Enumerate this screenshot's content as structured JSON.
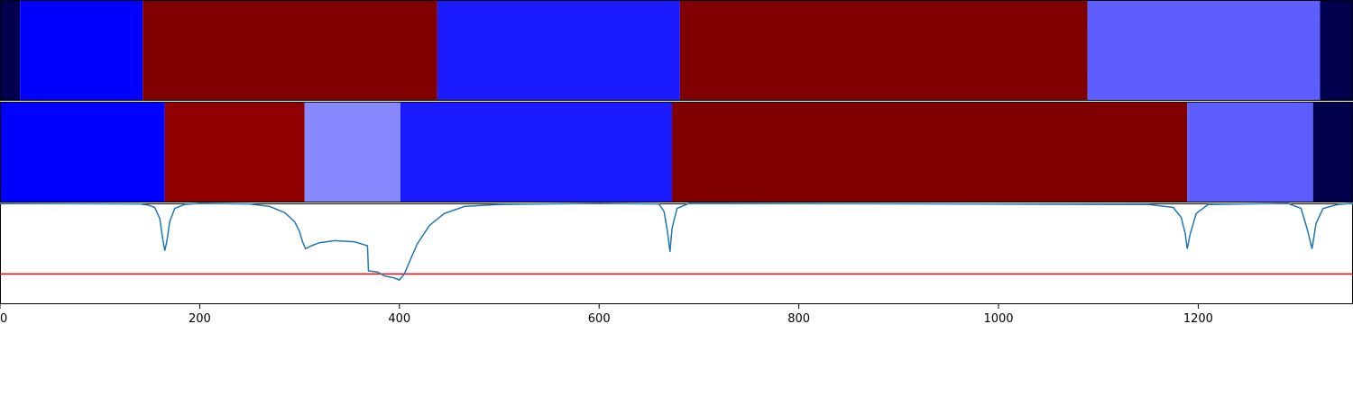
{
  "chart_data": {
    "type": "heatmap",
    "xlim": [
      0,
      1355
    ],
    "x_ticks": [
      0,
      200,
      400,
      600,
      800,
      1000,
      1200
    ],
    "x_tick_labels": [
      "0",
      "200",
      "400",
      "600",
      "800",
      "1000",
      "1200"
    ],
    "tracks": [
      {
        "segments": [
          {
            "start": 0,
            "end": 20,
            "color": "#00004d"
          },
          {
            "start": 20,
            "end": 143,
            "color": "#0000ff"
          },
          {
            "start": 143,
            "end": 438,
            "color": "#800000"
          },
          {
            "start": 438,
            "end": 681,
            "color": "#1a1aff"
          },
          {
            "start": 681,
            "end": 1089,
            "color": "#800000"
          },
          {
            "start": 1089,
            "end": 1322,
            "color": "#5e5eff"
          },
          {
            "start": 1322,
            "end": 1355,
            "color": "#00004d"
          }
        ]
      },
      {
        "segments": [
          {
            "start": 0,
            "end": 165,
            "color": "#0000ff"
          },
          {
            "start": 165,
            "end": 305,
            "color": "#910000"
          },
          {
            "start": 305,
            "end": 401,
            "color": "#8888ff"
          },
          {
            "start": 401,
            "end": 673,
            "color": "#1a1aff"
          },
          {
            "start": 673,
            "end": 1189,
            "color": "#800000"
          },
          {
            "start": 1189,
            "end": 1315,
            "color": "#5e5eff"
          },
          {
            "start": 1315,
            "end": 1355,
            "color": "#00004d"
          }
        ]
      }
    ],
    "signal": {
      "color": "#1f77b4",
      "ylim": [
        0,
        1
      ],
      "points": [
        [
          0,
          1.0
        ],
        [
          140,
          0.995
        ],
        [
          148,
          0.985
        ],
        [
          155,
          0.96
        ],
        [
          160,
          0.85
        ],
        [
          163,
          0.65
        ],
        [
          165,
          0.53
        ],
        [
          167,
          0.62
        ],
        [
          170,
          0.82
        ],
        [
          175,
          0.95
        ],
        [
          185,
          0.99
        ],
        [
          200,
          1.0
        ],
        [
          250,
          0.995
        ],
        [
          270,
          0.97
        ],
        [
          285,
          0.91
        ],
        [
          295,
          0.82
        ],
        [
          300,
          0.72
        ],
        [
          303,
          0.62
        ],
        [
          306,
          0.55
        ],
        [
          312,
          0.58
        ],
        [
          320,
          0.61
        ],
        [
          335,
          0.63
        ],
        [
          355,
          0.62
        ],
        [
          368,
          0.58
        ],
        [
          369,
          0.33
        ],
        [
          378,
          0.32
        ],
        [
          385,
          0.28
        ],
        [
          395,
          0.26
        ],
        [
          400,
          0.24
        ],
        [
          405,
          0.3
        ],
        [
          410,
          0.42
        ],
        [
          418,
          0.6
        ],
        [
          430,
          0.78
        ],
        [
          445,
          0.9
        ],
        [
          465,
          0.97
        ],
        [
          500,
          0.99
        ],
        [
          600,
          1.0
        ],
        [
          660,
          0.995
        ],
        [
          665,
          0.92
        ],
        [
          668,
          0.75
        ],
        [
          671,
          0.52
        ],
        [
          673,
          0.75
        ],
        [
          678,
          0.95
        ],
        [
          690,
          1.0
        ],
        [
          1150,
          0.99
        ],
        [
          1175,
          0.96
        ],
        [
          1183,
          0.86
        ],
        [
          1187,
          0.7
        ],
        [
          1189,
          0.55
        ],
        [
          1192,
          0.7
        ],
        [
          1198,
          0.9
        ],
        [
          1210,
          0.99
        ],
        [
          1290,
          1.0
        ],
        [
          1303,
          0.95
        ],
        [
          1309,
          0.75
        ],
        [
          1314,
          0.55
        ],
        [
          1318,
          0.8
        ],
        [
          1325,
          0.95
        ],
        [
          1340,
          0.99
        ],
        [
          1355,
          1.0
        ]
      ]
    },
    "threshold": {
      "value": 0.3,
      "color": "#ff0000"
    }
  }
}
